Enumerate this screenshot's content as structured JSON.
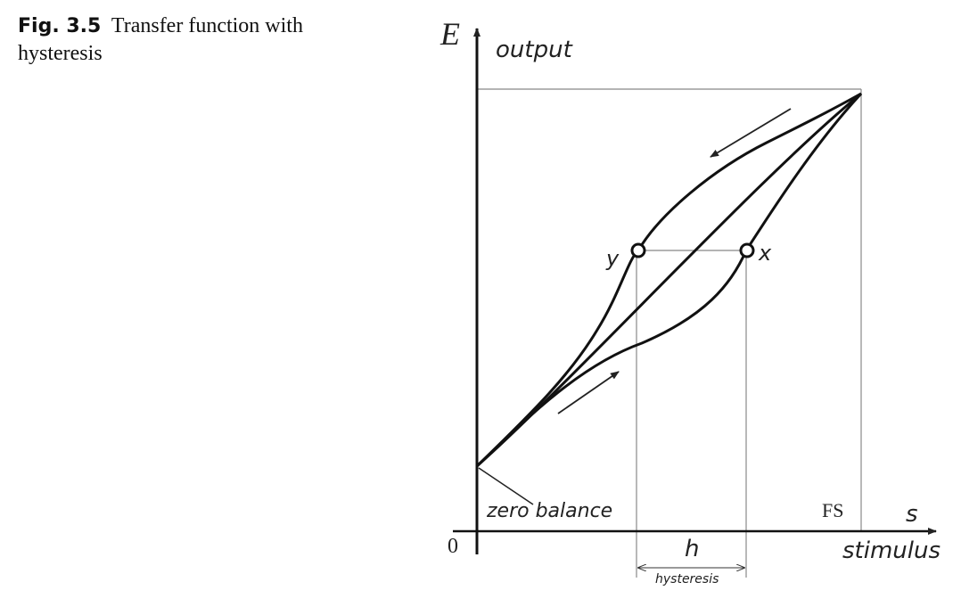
{
  "caption": {
    "figure_number": "Fig. 3.5",
    "text": "Transfer function with hysteresis"
  },
  "diagram": {
    "axis_y_symbol": "E",
    "axis_y_label": "output",
    "axis_x_symbol": "s",
    "axis_x_label": "stimulus",
    "origin_label": "0",
    "zero_balance_label": "zero balance",
    "full_scale_label": "FS",
    "point_y_label": "y",
    "point_x_label": "x",
    "hysteresis_symbol": "h",
    "hysteresis_label": "hysteresis"
  }
}
